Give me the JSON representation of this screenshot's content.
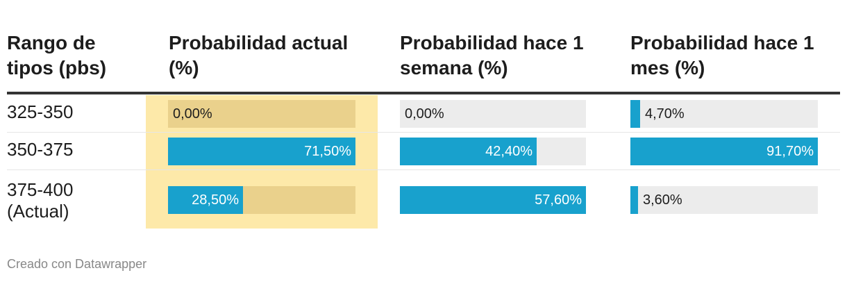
{
  "colors": {
    "bar": "#18a1cd",
    "highlight": "#fde9a9",
    "track": "#ececec",
    "highlight_track": "#ead18c"
  },
  "chart_data": {
    "type": "table",
    "columns": [
      "Rango de tipos (pbs)",
      "Probabilidad actual (%)",
      "Probabilidad hace 1 semana (%)",
      "Probabilidad hace 1 mes (%)"
    ],
    "rows": [
      {
        "range": "325-350",
        "values": [
          0.0,
          0.0,
          4.7
        ],
        "labels": [
          "0,00%",
          "0,00%",
          "4,70%"
        ]
      },
      {
        "range": "350-375",
        "values": [
          71.5,
          42.4,
          91.7
        ],
        "labels": [
          "71,50%",
          "42,40%",
          "91,70%"
        ]
      },
      {
        "range": "375-400\n(Actual)",
        "values": [
          28.5,
          57.6,
          3.6
        ],
        "labels": [
          "28,50%",
          "57,60%",
          "3,60%"
        ]
      }
    ],
    "highlighted_column": 0,
    "bar_max": [
      71.5,
      57.6,
      91.7
    ]
  },
  "footer": "Creado con Datawrapper"
}
